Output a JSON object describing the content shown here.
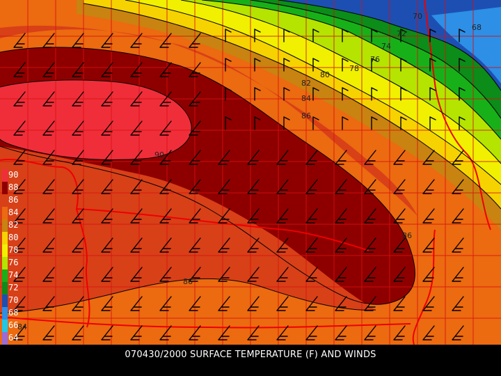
{
  "caption": "070430/2000 SURFACE TEMPERATURE (F) AND WINDS",
  "units": "F",
  "legend": [
    {
      "label": "90",
      "color": "#f02e3a",
      "text_color": "#ffffff"
    },
    {
      "label": "88",
      "color": "#8e0000",
      "text_color": "#ffffff"
    },
    {
      "label": "86",
      "color": "#d84018",
      "text_color": "#ffffff"
    },
    {
      "label": "84",
      "color": "#ec6a10",
      "text_color": "#ffffff"
    },
    {
      "label": "82",
      "color": "#c98310",
      "text_color": "#ffffff"
    },
    {
      "label": "80",
      "color": "#f6d200",
      "text_color": "#ffffff"
    },
    {
      "label": "78",
      "color": "#f0f000",
      "text_color": "#ffffff"
    },
    {
      "label": "76",
      "color": "#b4e400",
      "text_color": "#ffffff"
    },
    {
      "label": "74",
      "color": "#18b018",
      "text_color": "#ffffff"
    },
    {
      "label": "72",
      "color": "#0c8c18",
      "text_color": "#ffffff"
    },
    {
      "label": "70",
      "color": "#1d4fb2",
      "text_color": "#ffffff"
    },
    {
      "label": "68",
      "color": "#2d8fe6",
      "text_color": "#ffffff"
    },
    {
      "label": "66",
      "color": "#1ec8e8",
      "text_color": "#ffffff"
    },
    {
      "label": "64",
      "color": "#9b6bd6",
      "text_color": "#ffffff"
    }
  ],
  "contour_labels": [
    "70",
    "68",
    "72",
    "74",
    "76",
    "78",
    "80",
    "82",
    "84",
    "86",
    "90",
    "86",
    "86",
    "84"
  ],
  "colors": {
    "background": "#000000",
    "county_lines": "#d81010",
    "contours": "#000000",
    "wind_barbs": "#000000"
  }
}
